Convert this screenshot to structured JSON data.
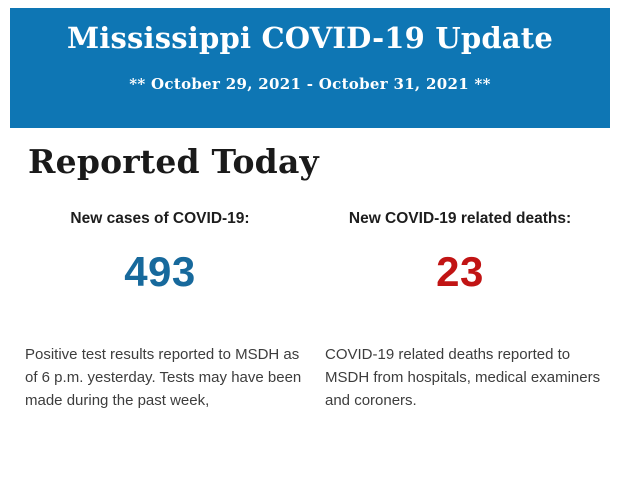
{
  "banner": {
    "title": "Mississippi COVID-19 Update",
    "date_range": "** October 29, 2021 - October 31, 2021 **",
    "background_color": "#0e76b4",
    "text_color": "#ffffff"
  },
  "section": {
    "heading": "Reported Today"
  },
  "stats": {
    "cases": {
      "label": "New cases of COVID-19:",
      "value": "493",
      "value_color": "#17699c",
      "description": "Positive test results reported to MSDH as\nof 6 p.m. yesterday. Tests may have been\nmade during the past week,"
    },
    "deaths": {
      "label": "New COVID-19 related deaths:",
      "value": "23",
      "value_color": "#c11414",
      "description": "COVID-19 related deaths reported to\nMSDH from hospitals, medical examiners\nand coroners."
    }
  }
}
